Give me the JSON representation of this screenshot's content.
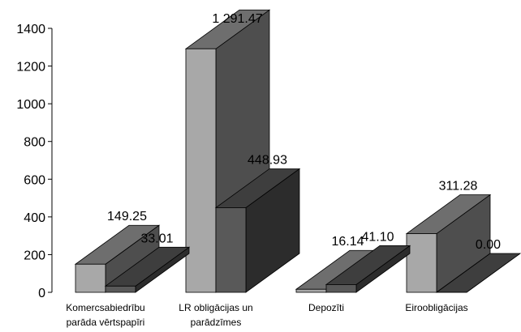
{
  "chart_data": {
    "type": "bar",
    "style": "3d-clustered",
    "title": "",
    "xlabel": "",
    "ylabel": "",
    "ylim": [
      0,
      1400
    ],
    "yticks": [
      0,
      200,
      400,
      600,
      800,
      1000,
      1200,
      1400
    ],
    "ytick_labels": [
      "0",
      "200",
      "400",
      "600",
      "800",
      "1000",
      "1200",
      "1400"
    ],
    "grid": false,
    "legend": "none",
    "categories": [
      [
        "Komercsabiedrību",
        "parāda vērtspapīri"
      ],
      [
        "LR obligācijas un",
        "parādzīmes"
      ],
      [
        "Depozīti"
      ],
      [
        "Eiroobligācijas"
      ]
    ],
    "series": [
      {
        "values": [
          149.25,
          1291.47,
          16.14,
          311.28
        ],
        "labels": [
          "149.25",
          "1 291.47",
          "16.14",
          "311.28"
        ],
        "colors": {
          "front": "#a8a8a8",
          "top": "#6e6e6e",
          "side": "#4e4e4e"
        }
      },
      {
        "values": [
          33.01,
          448.93,
          41.1,
          0.0
        ],
        "labels": [
          "33.01",
          "448.93",
          "41.10",
          "0.00"
        ],
        "colors": {
          "front": "#595959",
          "top": "#3e3e3e",
          "side": "#2c2c2c"
        }
      }
    ]
  }
}
